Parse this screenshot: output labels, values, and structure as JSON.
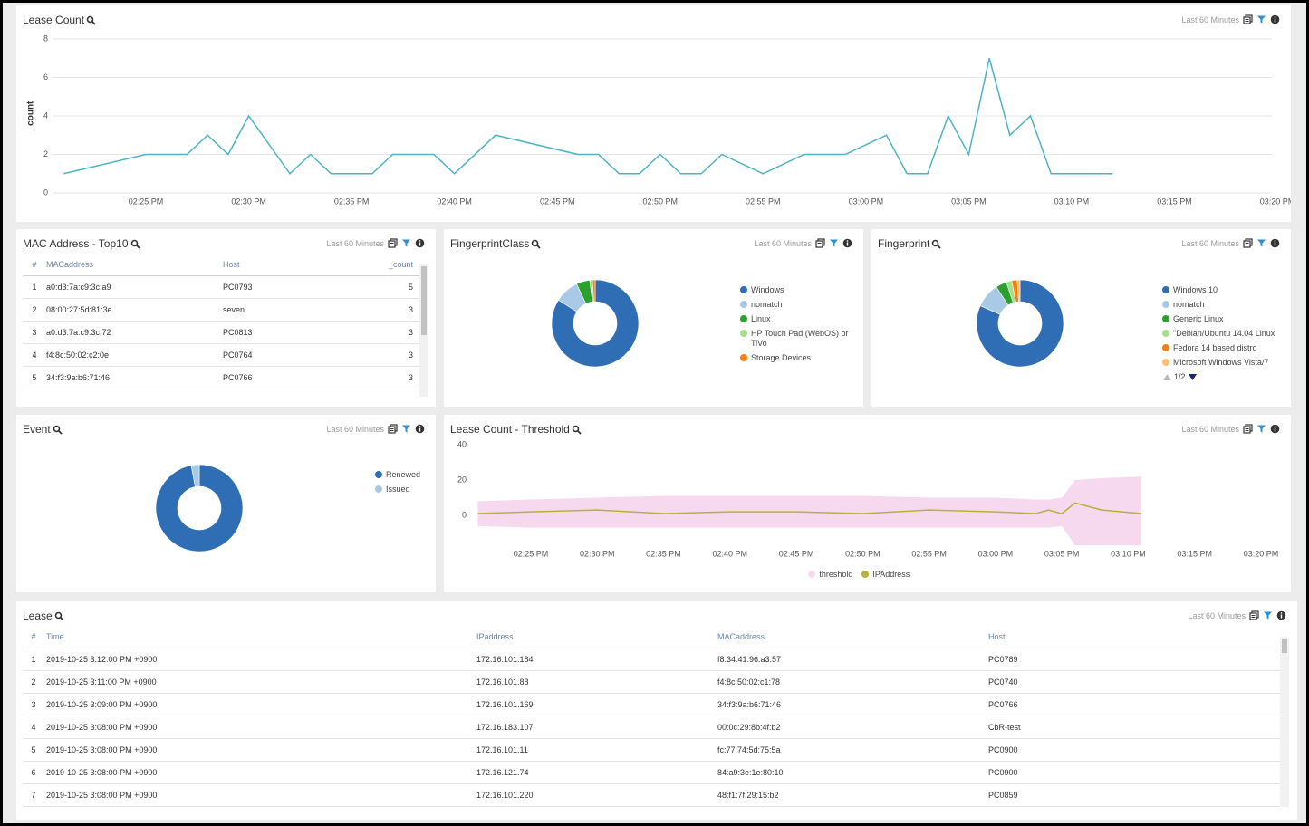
{
  "chart_data": [
    {
      "type": "line",
      "title": "Lease Count",
      "time_range": "Last 60 Minutes",
      "ylabel": "_count",
      "x": [
        "02:21 PM",
        "02:25 PM",
        "02:27 PM",
        "02:28 PM",
        "02:29 PM",
        "02:30 PM",
        "02:32 PM",
        "02:33 PM",
        "02:34 PM",
        "02:36 PM",
        "02:37 PM",
        "02:39 PM",
        "02:40 PM",
        "02:42 PM",
        "02:46 PM",
        "02:47 PM",
        "02:48 PM",
        "02:49 PM",
        "02:50 PM",
        "02:51 PM",
        "02:52 PM",
        "02:53 PM",
        "02:55 PM",
        "02:57 PM",
        "02:59 PM",
        "03:01 PM",
        "03:02 PM",
        "03:03 PM",
        "03:04 PM",
        "03:05 PM",
        "03:06 PM",
        "03:07 PM",
        "03:08 PM",
        "03:09 PM",
        "03:12 PM"
      ],
      "values": [
        1,
        2,
        2,
        3,
        2,
        4,
        1,
        2,
        1,
        1,
        2,
        2,
        1,
        3,
        2,
        2,
        1,
        1,
        2,
        1,
        1,
        2,
        1,
        2,
        2,
        3,
        1,
        1,
        4,
        2,
        7,
        3,
        4,
        1,
        1
      ],
      "color": "#4bb3c3",
      "xlim": [
        "02:20 PM",
        "03:20 PM"
      ],
      "xticks": [
        "02:25 PM",
        "02:30 PM",
        "02:35 PM",
        "02:40 PM",
        "02:45 PM",
        "02:50 PM",
        "02:55 PM",
        "03:00 PM",
        "03:05 PM",
        "03:10 PM",
        "03:15 PM",
        "03:20 PM"
      ],
      "ylim": [
        0,
        8
      ],
      "yticks": [
        0,
        2,
        4,
        6,
        8
      ],
      "grid": true
    },
    {
      "type": "pie",
      "title": "FingerprintClass",
      "time_range": "Last 60 Minutes",
      "labels": [
        "Windows",
        "nomatch",
        "Linux",
        "HP Touch Pad (WebOS) or TiVo",
        "Storage Devices"
      ],
      "values": [
        84,
        9,
        5,
        1,
        1
      ],
      "colors": [
        "#2f6db5",
        "#a9c9e6",
        "#2ca02c",
        "#a6de8a",
        "#f57f17"
      ]
    },
    {
      "type": "pie",
      "title": "Fingerprint",
      "time_range": "Last 60 Minutes",
      "labels": [
        "Windows 10",
        "nomatch",
        "Generic Linux",
        "\"Debian/Ubuntu 14.04 Linux",
        "Fedora 14 based distro",
        "Microsoft Windows Vista/7"
      ],
      "values": [
        80,
        9,
        4,
        2,
        2,
        1
      ],
      "colors": [
        "#2f6db5",
        "#a9c9e6",
        "#2ca02c",
        "#a6de8a",
        "#f57f17",
        "#fdbf6f"
      ],
      "legend_page": "1/2"
    },
    {
      "type": "pie",
      "title": "Event",
      "time_range": "Last 60 Minutes",
      "labels": [
        "Renewed",
        "Issued"
      ],
      "values": [
        97,
        3
      ],
      "colors": [
        "#2f6db5",
        "#a9c9e6"
      ]
    },
    {
      "type": "line",
      "title": "Lease Count - Threshold",
      "time_range": "Last 60 Minutes",
      "x": [
        "02:21 PM",
        "02:25 PM",
        "02:30 PM",
        "02:35 PM",
        "02:40 PM",
        "02:45 PM",
        "02:50 PM",
        "02:55 PM",
        "03:00 PM",
        "03:03 PM",
        "03:04 PM",
        "03:05 PM",
        "03:06 PM",
        "03:08 PM",
        "03:11 PM"
      ],
      "series": [
        {
          "name": "threshold",
          "color": "#f6d9ee",
          "lower": [
            -6,
            -7,
            -7,
            -7,
            -7,
            -7,
            -7,
            -7,
            -7,
            -7,
            -7,
            -6,
            -17,
            -17,
            -17
          ],
          "upper": [
            8,
            9,
            10,
            11,
            11,
            11,
            11,
            10,
            10,
            9,
            9,
            10,
            20,
            21,
            22
          ]
        },
        {
          "name": "IPAddress",
          "color": "#b5b33a",
          "values": [
            1,
            2,
            3,
            1,
            2,
            2,
            1,
            3,
            2,
            1,
            3,
            1,
            7,
            3,
            1
          ]
        }
      ],
      "xlim": [
        "02:20 PM",
        "03:20 PM"
      ],
      "xticks": [
        "02:25 PM",
        "02:30 PM",
        "02:35 PM",
        "02:40 PM",
        "02:45 PM",
        "02:50 PM",
        "02:55 PM",
        "03:00 PM",
        "03:05 PM",
        "03:10 PM",
        "03:15 PM",
        "03:20 PM"
      ],
      "ylim": [
        -20,
        40
      ],
      "yticks": [
        0,
        20,
        40
      ],
      "grid": false
    }
  ],
  "mac_table": {
    "title": "MAC Address - Top10",
    "time_range": "Last 60 Minutes",
    "columns": [
      "#",
      "MACaddress",
      "Host",
      "_count"
    ],
    "rows": [
      [
        1,
        "a0:d3:7a:c9:3c:a9",
        "PC0793",
        5
      ],
      [
        2,
        "08:00:27:5d:81:3e",
        "seven",
        3
      ],
      [
        3,
        "a0:d3:7a:c9:3c:72",
        "PC0813",
        3
      ],
      [
        4,
        "f4:8c:50:02:c2:0e",
        "PC0764",
        3
      ],
      [
        5,
        "34:f3:9a:b6:71:46",
        "PC0766",
        3
      ]
    ]
  },
  "lease_table": {
    "title": "Lease",
    "time_range": "Last 60 Minutes",
    "columns": [
      "#",
      "Time",
      "IPaddress",
      "MACaddress",
      "Host"
    ],
    "rows": [
      [
        1,
        "2019-10-25 3:12:00 PM +0900",
        "172.16.101.184",
        "f8:34:41:96:a3:57",
        "PC0789"
      ],
      [
        2,
        "2019-10-25 3:11:00 PM +0900",
        "172.16.101.88",
        "f4:8c:50:02:c1:78",
        "PC0740"
      ],
      [
        3,
        "2019-10-25 3:09:00 PM +0900",
        "172.16.101.169",
        "34:f3:9a:b6:71:46",
        "PC0766"
      ],
      [
        4,
        "2019-10-25 3:08:00 PM +0900",
        "172.16.183.107",
        "00:0c:29:8b:4f:b2",
        "CbR-test"
      ],
      [
        5,
        "2019-10-25 3:08:00 PM +0900",
        "172.16.101.11",
        "fc:77:74:5d:75:5a",
        "PC0900"
      ],
      [
        6,
        "2019-10-25 3:08:00 PM +0900",
        "172.16.121.74",
        "84:a9:3e:1e:80:10",
        "PC0900"
      ],
      [
        7,
        "2019-10-25 3:08:00 PM +0900",
        "172.16.101.220",
        "48:f1:7f:29:15:b2",
        "PC0859"
      ]
    ]
  }
}
